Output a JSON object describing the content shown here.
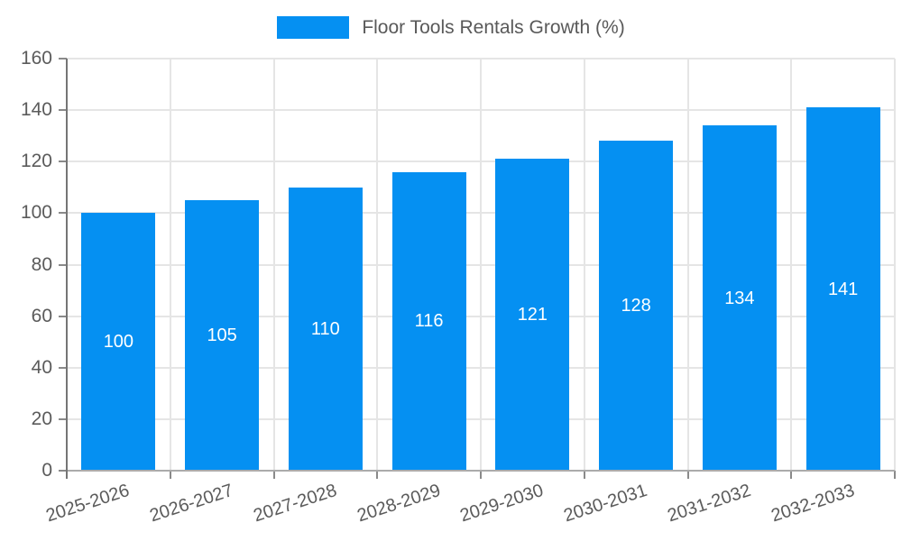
{
  "chart_data": {
    "type": "bar",
    "title": "Floor Tools Rentals Growth (%)",
    "categories": [
      "2025-2026",
      "2026-2027",
      "2027-2028",
      "2028-2029",
      "2029-2030",
      "2030-2031",
      "2031-2032",
      "2032-2033"
    ],
    "values": [
      100,
      105,
      110,
      116,
      121,
      128,
      134,
      141
    ],
    "value_labels": [
      "100",
      "105",
      "110",
      "116",
      "121",
      "128",
      "134",
      "141"
    ],
    "xlabel": "",
    "ylabel": "",
    "ylim": [
      0,
      160
    ],
    "yticks": [
      0,
      20,
      40,
      60,
      80,
      100,
      120,
      140,
      160
    ],
    "ytick_labels": [
      "0",
      "20",
      "40",
      "60",
      "80",
      "100",
      "120",
      "140",
      "160"
    ],
    "grid": "on",
    "legend_position": "top-center",
    "bar_color": "#0590f2",
    "value_label_color": "#ffffff",
    "gridline_color": "#e5e5e5",
    "y_axis_color": "#757575",
    "x_axis_color": "#ababab",
    "tick_label_color": "#5b5b5b",
    "legend_text_color": "#595959"
  }
}
